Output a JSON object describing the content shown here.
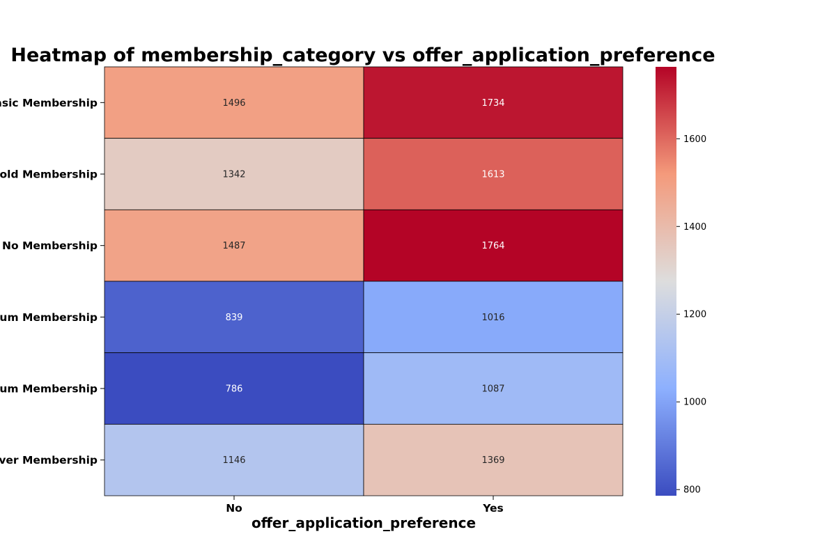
{
  "chart_data": {
    "type": "heatmap",
    "title": "Heatmap of membership_category vs offer_application_preference",
    "xlabel": "offer_application_preference",
    "ylabel": "",
    "x_categories": [
      "No",
      "Yes"
    ],
    "y_categories": [
      "Basic Membership",
      "Gold Membership",
      "No Membership",
      "Platinum Membership",
      "Premium Membership",
      "Silver Membership"
    ],
    "values": [
      [
        1496,
        1734
      ],
      [
        1342,
        1613
      ],
      [
        1487,
        1764
      ],
      [
        839,
        1016
      ],
      [
        786,
        1087
      ],
      [
        1146,
        1369
      ]
    ],
    "colormap": "coolwarm",
    "vmin": 786,
    "vmax": 1764,
    "colorbar_ticks": [
      800,
      1000,
      1200,
      1400,
      1600
    ],
    "annotations": true
  }
}
